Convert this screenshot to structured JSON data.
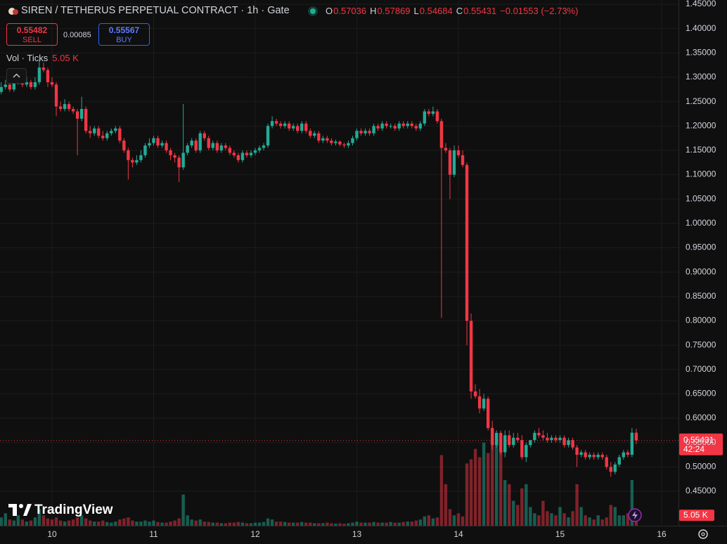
{
  "header": {
    "title": "SIREN / TETHERUS PERPETUAL CONTRACT · 1h · Gate",
    "ohlc_labels": [
      "O",
      "H",
      "L",
      "C"
    ],
    "change_label": "−0.01553 (−2.73%)",
    "sell": {
      "price": 0.55482,
      "label": "SELL"
    },
    "spread": 0.00085,
    "buy": {
      "price": 0.55567,
      "label": "BUY"
    },
    "volume_legend": "Vol · Ticks"
  },
  "watermark": "TradingView",
  "chart_data": {
    "type": "candlestick",
    "x": [
      9.5,
      9.5417,
      9.5833,
      9.625,
      9.6667,
      9.7083,
      9.75,
      9.7917,
      9.8333,
      9.875,
      9.9167,
      9.9583,
      10,
      10.0417,
      10.0833,
      10.125,
      10.1667,
      10.2083,
      10.25,
      10.2917,
      10.3333,
      10.375,
      10.4167,
      10.4583,
      10.5,
      10.5417,
      10.5833,
      10.625,
      10.6667,
      10.7083,
      10.75,
      10.7917,
      10.8333,
      10.875,
      10.9167,
      10.9583,
      11,
      11.0417,
      11.0833,
      11.125,
      11.1667,
      11.2083,
      11.25,
      11.2917,
      11.3333,
      11.375,
      11.4167,
      11.4583,
      11.5,
      11.5417,
      11.5833,
      11.625,
      11.6667,
      11.7083,
      11.75,
      11.7917,
      11.8333,
      11.875,
      11.9167,
      11.9583,
      12,
      12.0417,
      12.0833,
      12.125,
      12.1667,
      12.2083,
      12.25,
      12.2917,
      12.3333,
      12.375,
      12.4167,
      12.4583,
      12.5,
      12.5417,
      12.5833,
      12.625,
      12.6667,
      12.7083,
      12.75,
      12.7917,
      12.8333,
      12.875,
      12.9167,
      12.9583,
      13,
      13.0417,
      13.0833,
      13.125,
      13.1667,
      13.2083,
      13.25,
      13.2917,
      13.3333,
      13.375,
      13.4167,
      13.4583,
      13.5,
      13.5417,
      13.5833,
      13.625,
      13.6667,
      13.7083,
      13.75,
      13.7917,
      13.8333,
      13.875,
      13.9167,
      13.9583,
      14,
      14.0417,
      14.0833,
      14.125,
      14.1667,
      14.2083,
      14.25,
      14.2917,
      14.3333,
      14.375,
      14.4167,
      14.4583,
      14.5,
      14.5417,
      14.5833,
      14.625,
      14.6667,
      14.7083,
      14.75,
      14.7917,
      14.8333,
      14.875,
      14.9167,
      14.9583,
      15,
      15.0417,
      15.0833,
      15.125,
      15.1667,
      15.2083,
      15.25,
      15.2917,
      15.3333,
      15.375,
      15.4167,
      15.4583,
      15.5,
      15.5417,
      15.5833,
      15.625,
      15.6667,
      15.7083,
      15.75
    ],
    "open": [
      1.27,
      1.28,
      1.285,
      1.275,
      1.29,
      1.295,
      1.285,
      1.29,
      1.28,
      1.29,
      1.32,
      1.315,
      1.29,
      1.285,
      1.24,
      1.235,
      1.245,
      1.235,
      1.23,
      1.215,
      1.235,
      1.19,
      1.185,
      1.195,
      1.18,
      1.175,
      1.185,
      1.19,
      1.195,
      1.17,
      1.15,
      1.13,
      1.125,
      1.13,
      1.14,
      1.16,
      1.165,
      1.175,
      1.16,
      1.165,
      1.15,
      1.14,
      1.135,
      1.115,
      1.145,
      1.16,
      1.17,
      1.15,
      1.185,
      1.175,
      1.155,
      1.165,
      1.15,
      1.16,
      1.155,
      1.145,
      1.14,
      1.13,
      1.145,
      1.14,
      1.145,
      1.15,
      1.155,
      1.16,
      1.2,
      1.21,
      1.205,
      1.2,
      1.205,
      1.195,
      1.2,
      1.19,
      1.205,
      1.19,
      1.18,
      1.185,
      1.17,
      1.175,
      1.17,
      1.165,
      1.168,
      1.162,
      1.16,
      1.165,
      1.175,
      1.19,
      1.185,
      1.19,
      1.185,
      1.2,
      1.195,
      1.205,
      1.2,
      1.2,
      1.195,
      1.205,
      1.2,
      1.205,
      1.2,
      1.195,
      1.205,
      1.23,
      1.225,
      1.23,
      1.21,
      1.155,
      1.15,
      1.1,
      1.15,
      1.14,
      1.12,
      0.8,
      0.655,
      0.645,
      0.62,
      0.64,
      0.58,
      0.545,
      0.57,
      0.53,
      0.565,
      0.545,
      0.56,
      0.555,
      0.52,
      0.545,
      0.555,
      0.57,
      0.565,
      0.56,
      0.555,
      0.56,
      0.555,
      0.56,
      0.545,
      0.555,
      0.54,
      0.525,
      0.53,
      0.52,
      0.525,
      0.52,
      0.525,
      0.52,
      0.5,
      0.49,
      0.505,
      0.52,
      0.53,
      0.525,
      0.57036
    ],
    "high": [
      1.29,
      1.295,
      1.295,
      1.3,
      1.305,
      1.3,
      1.3,
      1.295,
      1.3,
      1.335,
      1.33,
      1.32,
      1.3,
      1.29,
      1.25,
      1.255,
      1.25,
      1.24,
      1.235,
      1.26,
      1.24,
      1.2,
      1.2,
      1.2,
      1.19,
      1.19,
      1.195,
      1.2,
      1.2,
      1.175,
      1.155,
      1.135,
      1.14,
      1.15,
      1.165,
      1.175,
      1.18,
      1.18,
      1.17,
      1.17,
      1.155,
      1.145,
      1.14,
      1.245,
      1.165,
      1.175,
      1.175,
      1.19,
      1.19,
      1.18,
      1.17,
      1.17,
      1.165,
      1.165,
      1.16,
      1.15,
      1.145,
      1.15,
      1.15,
      1.15,
      1.155,
      1.16,
      1.165,
      1.205,
      1.22,
      1.215,
      1.21,
      1.21,
      1.21,
      1.205,
      1.205,
      1.21,
      1.21,
      1.195,
      1.19,
      1.19,
      1.18,
      1.18,
      1.175,
      1.172,
      1.17,
      1.166,
      1.17,
      1.18,
      1.195,
      1.195,
      1.195,
      1.195,
      1.205,
      1.205,
      1.21,
      1.21,
      1.205,
      1.205,
      1.21,
      1.21,
      1.21,
      1.21,
      1.205,
      1.21,
      1.235,
      1.235,
      1.24,
      1.235,
      1.215,
      1.165,
      1.155,
      1.16,
      1.16,
      1.15,
      1.125,
      0.815,
      0.67,
      0.66,
      0.65,
      0.645,
      0.595,
      0.575,
      0.575,
      0.575,
      0.575,
      0.57,
      0.57,
      0.565,
      0.55,
      0.555,
      0.575,
      0.58,
      0.575,
      0.57,
      0.565,
      0.565,
      0.565,
      0.565,
      0.56,
      0.56,
      0.545,
      0.535,
      0.535,
      0.53,
      0.53,
      0.53,
      0.53,
      0.525,
      0.51,
      0.51,
      0.525,
      0.535,
      0.535,
      0.58,
      0.57869
    ],
    "low": [
      1.265,
      1.275,
      1.27,
      1.27,
      1.285,
      1.28,
      1.28,
      1.275,
      1.275,
      1.285,
      1.31,
      1.28,
      1.28,
      1.22,
      1.23,
      1.23,
      1.23,
      1.225,
      1.14,
      1.21,
      1.185,
      1.175,
      1.18,
      1.175,
      1.17,
      1.17,
      1.18,
      1.185,
      1.165,
      1.145,
      1.09,
      1.115,
      1.12,
      1.125,
      1.135,
      1.155,
      1.16,
      1.155,
      1.155,
      1.145,
      1.13,
      1.125,
      1.085,
      1.11,
      1.14,
      1.155,
      1.145,
      1.145,
      1.17,
      1.15,
      1.15,
      1.145,
      1.145,
      1.15,
      1.14,
      1.135,
      1.125,
      1.125,
      1.135,
      1.135,
      1.14,
      1.145,
      1.15,
      1.155,
      1.195,
      1.2,
      1.195,
      1.195,
      1.19,
      1.19,
      1.185,
      1.185,
      1.185,
      1.175,
      1.175,
      1.165,
      1.165,
      1.165,
      1.16,
      1.16,
      1.158,
      1.155,
      1.155,
      1.16,
      1.17,
      1.18,
      1.18,
      1.18,
      1.18,
      1.19,
      1.19,
      1.195,
      1.195,
      1.19,
      1.19,
      1.195,
      1.195,
      1.195,
      1.19,
      1.19,
      1.2,
      1.22,
      1.22,
      1.205,
      0.806,
      1.145,
      1.05,
      1.095,
      1.135,
      1.115,
      0.75,
      0.64,
      0.64,
      0.61,
      0.615,
      0.575,
      0.535,
      0.54,
      0.525,
      0.52,
      0.54,
      0.54,
      0.55,
      0.515,
      0.51,
      0.54,
      0.55,
      0.56,
      0.555,
      0.55,
      0.55,
      0.55,
      0.55,
      0.54,
      0.54,
      0.535,
      0.5,
      0.52,
      0.515,
      0.515,
      0.515,
      0.515,
      0.515,
      0.495,
      0.48,
      0.485,
      0.5,
      0.515,
      0.52,
      0.52,
      0.54684
    ],
    "close": [
      1.28,
      1.285,
      1.275,
      1.29,
      1.295,
      1.285,
      1.29,
      1.28,
      1.29,
      1.32,
      1.315,
      1.29,
      1.285,
      1.24,
      1.235,
      1.245,
      1.235,
      1.23,
      1.215,
      1.235,
      1.19,
      1.185,
      1.195,
      1.18,
      1.175,
      1.185,
      1.19,
      1.195,
      1.17,
      1.15,
      1.13,
      1.125,
      1.13,
      1.14,
      1.16,
      1.165,
      1.175,
      1.16,
      1.165,
      1.15,
      1.14,
      1.135,
      1.115,
      1.145,
      1.16,
      1.17,
      1.15,
      1.185,
      1.175,
      1.155,
      1.165,
      1.15,
      1.16,
      1.155,
      1.145,
      1.14,
      1.13,
      1.145,
      1.14,
      1.145,
      1.15,
      1.155,
      1.16,
      1.2,
      1.21,
      1.205,
      1.2,
      1.205,
      1.195,
      1.2,
      1.19,
      1.205,
      1.19,
      1.18,
      1.185,
      1.17,
      1.175,
      1.17,
      1.165,
      1.168,
      1.162,
      1.16,
      1.165,
      1.175,
      1.19,
      1.185,
      1.19,
      1.185,
      1.2,
      1.195,
      1.205,
      1.2,
      1.2,
      1.195,
      1.205,
      1.2,
      1.205,
      1.2,
      1.195,
      1.205,
      1.23,
      1.225,
      1.23,
      1.21,
      1.155,
      1.15,
      1.1,
      1.15,
      1.14,
      1.12,
      0.8,
      0.655,
      0.645,
      0.62,
      0.64,
      0.58,
      0.545,
      0.57,
      0.53,
      0.565,
      0.545,
      0.56,
      0.555,
      0.52,
      0.545,
      0.555,
      0.57,
      0.565,
      0.56,
      0.555,
      0.56,
      0.555,
      0.56,
      0.545,
      0.555,
      0.54,
      0.525,
      0.53,
      0.52,
      0.525,
      0.52,
      0.525,
      0.52,
      0.5,
      0.49,
      0.505,
      0.52,
      0.53,
      0.525,
      0.57036,
      0.55431
    ],
    "volume": [
      4000,
      6000,
      3000,
      2500,
      5000,
      3000,
      2000,
      2500,
      4000,
      8000,
      5000,
      3500,
      3000,
      4000,
      2500,
      2000,
      2500,
      3000,
      4000,
      5000,
      3500,
      2500,
      2000,
      2000,
      2500,
      1800,
      1500,
      2000,
      3000,
      3500,
      4000,
      2500,
      2000,
      2000,
      2500,
      2000,
      2500,
      1800,
      1500,
      1500,
      2000,
      2500,
      3500,
      15000,
      5000,
      3000,
      2500,
      3000,
      2000,
      1800,
      1500,
      1500,
      1200,
      1200,
      1500,
      1500,
      1800,
      1500,
      1200,
      1200,
      1500,
      1500,
      1800,
      3500,
      3000,
      2000,
      2000,
      1800,
      1500,
      1500,
      1500,
      1800,
      1500,
      1500,
      1200,
      1200,
      1200,
      1500,
      1200,
      1000,
      1200,
      1000,
      1200,
      1500,
      2000,
      1500,
      1500,
      1500,
      1800,
      1500,
      1500,
      1500,
      1800,
      1500,
      1500,
      1800,
      2000,
      2000,
      2500,
      3000,
      4500,
      5000,
      3500,
      4000,
      34000,
      20000,
      8000,
      5000,
      6000,
      4500,
      30000,
      32000,
      37000,
      33000,
      40000,
      35000,
      44000,
      40000,
      37000,
      22000,
      20000,
      12000,
      10000,
      18000,
      20000,
      9000,
      6000,
      5000,
      12000,
      7000,
      6000,
      5000,
      9000,
      6000,
      4000,
      7000,
      20000,
      9000,
      5000,
      4000,
      3000,
      5000,
      3000,
      4000,
      10000,
      9000,
      5000,
      5000,
      6000,
      22000,
      5050
    ],
    "current_volume_label": "5.05 K",
    "countdown": "42:24",
    "xlim": [
      9.4879,
      16.166
    ],
    "xticks": [
      10,
      11,
      12,
      13,
      14,
      15,
      16
    ],
    "ylim": [
      0.3793,
      1.4587
    ],
    "yticks": [
      {
        "value": 0.45,
        "label": "0.45000"
      },
      {
        "value": 0.5,
        "label": "0.50000"
      },
      {
        "value": 0.55,
        "label": "0.55000"
      },
      {
        "value": 0.6,
        "label": "0.60000"
      },
      {
        "value": 0.65,
        "label": "0.65000"
      },
      {
        "value": 0.7,
        "label": "0.70000"
      },
      {
        "value": 0.75,
        "label": "0.75000"
      },
      {
        "value": 0.8,
        "label": "0.80000"
      },
      {
        "value": 0.85,
        "label": "0.85000"
      },
      {
        "value": 0.9,
        "label": "0.90000"
      },
      {
        "value": 0.95,
        "label": "0.95000"
      },
      {
        "value": 1.0,
        "label": "1.00000"
      },
      {
        "value": 1.05,
        "label": "1.05000"
      },
      {
        "value": 1.1,
        "label": "1.10000"
      },
      {
        "value": 1.15,
        "label": "1.15000"
      },
      {
        "value": 1.2,
        "label": "1.20000"
      },
      {
        "value": 1.25,
        "label": "1.25000"
      },
      {
        "value": 1.3,
        "label": "1.30000"
      },
      {
        "value": 1.35,
        "label": "1.35000"
      },
      {
        "value": 1.4,
        "label": "1.40000"
      },
      {
        "value": 1.45,
        "label": "1.45000"
      }
    ],
    "grid": true,
    "colors": {
      "up": "#22ab94",
      "down": "#f23645"
    }
  }
}
